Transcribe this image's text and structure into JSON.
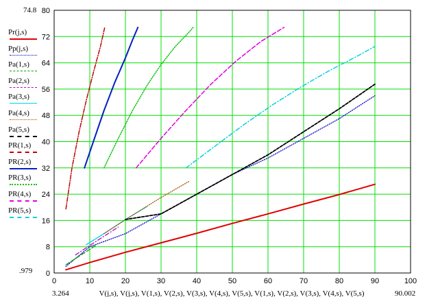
{
  "chart_data": {
    "type": "line",
    "xlim": [
      0,
      100
    ],
    "ylim": [
      0,
      80
    ],
    "x_ticks": [
      "0",
      "10",
      "20",
      "30",
      "40",
      "50",
      "60",
      "70",
      "80",
      "90",
      "100"
    ],
    "y_ticks": [
      "0",
      "8",
      "16",
      "24",
      "32",
      "40",
      "48",
      "56",
      "64",
      "72",
      "80"
    ],
    "corner_labels": {
      "y_max": "74.8",
      "y_min": ".979",
      "x_min": "3.264",
      "x_max": "90.002"
    },
    "xlabel": "V(j,s), V(j,s), V(1,s), V(2,s), V(3,s), V(4,s), V(5,s), V(1,s), V(2,s), V(3,s), V(4,s), V(5,s)",
    "grid": true,
    "legend_position": "left",
    "series": [
      {
        "name": "Pr(j,s)",
        "color": "#e00000",
        "dash": "",
        "width": 2,
        "x": [
          3.3,
          10,
          20,
          30,
          40,
          50,
          60,
          70,
          80,
          90
        ],
        "y": [
          0.98,
          3.2,
          6.3,
          9.2,
          12.1,
          15.1,
          18.0,
          21.0,
          23.9,
          27.0
        ]
      },
      {
        "name": "Pp(j,s)",
        "color": "#0000d0",
        "dash": "1,2",
        "width": 1.3,
        "x": [
          3.3,
          10,
          20,
          30,
          40,
          50,
          60,
          70,
          80,
          90
        ],
        "y": [
          2.0,
          8.0,
          12.0,
          18.0,
          24.0,
          30.0,
          35.0,
          41.0,
          47.0,
          54.0
        ]
      },
      {
        "name": "Pa(1,s)",
        "color": "#00a000",
        "dash": "6,3",
        "width": 1.3,
        "x": [
          3.3,
          6,
          9,
          12
        ],
        "y": [
          2.5,
          4.4,
          6.5,
          8.6
        ]
      },
      {
        "name": "Pa(2,s)",
        "color": "#c000c0",
        "dash": "6,3,1,3",
        "width": 1.3,
        "x": [
          6,
          10,
          14,
          18
        ],
        "y": [
          5.5,
          8.4,
          11.2,
          14.0
        ]
      },
      {
        "name": "Pa(3,s)",
        "color": "#00d0e0",
        "dash": "",
        "width": 1.3,
        "x": [
          9,
          14,
          20,
          26
        ],
        "y": [
          8.6,
          12.0,
          16.3,
          20.2
        ]
      },
      {
        "name": "Pa(4,s)",
        "color": "#a05000",
        "dash": "1,2",
        "width": 1.3,
        "x": [
          14,
          22,
          30,
          38
        ],
        "y": [
          12.0,
          17.6,
          23.0,
          28.0
        ]
      },
      {
        "name": "Pa(5,s)",
        "color": "#000000",
        "dash": "4,2",
        "width": 1.8,
        "x": [
          20,
          30,
          40,
          50,
          60,
          70,
          80,
          90
        ],
        "y": [
          16.3,
          18.0,
          24.0,
          30.0,
          36.0,
          43.0,
          50.0,
          57.5
        ]
      },
      {
        "name": "PR(1,s)",
        "color": "#c00000",
        "dash": "6,2,1,2",
        "width": 1.5,
        "x": [
          3.3,
          5,
          7,
          9,
          11,
          13,
          14.2
        ],
        "y": [
          19.5,
          32.0,
          43.0,
          52.5,
          61.0,
          69.0,
          74.8
        ]
      },
      {
        "name": "PR(2,s)",
        "color": "#0020c0",
        "dash": "",
        "width": 2,
        "x": [
          8.5,
          11,
          14,
          17,
          20,
          22,
          23.5
        ],
        "y": [
          32.0,
          40.0,
          49.5,
          58.0,
          65.5,
          71.0,
          74.8
        ]
      },
      {
        "name": "PR(3,s)",
        "color": "#00c000",
        "dash": "1,2",
        "width": 1.5,
        "x": [
          14,
          18,
          22,
          26,
          30,
          34,
          38,
          39
        ],
        "y": [
          32.0,
          41.0,
          49.5,
          57.0,
          63.5,
          69.0,
          73.5,
          74.8
        ]
      },
      {
        "name": "PR(4,s)",
        "color": "#e000e0",
        "dash": "6,3",
        "width": 1.5,
        "x": [
          23,
          30,
          37,
          44,
          51,
          58,
          64.5
        ],
        "y": [
          32.0,
          41.0,
          49.5,
          57.5,
          64.5,
          70.5,
          74.8
        ]
      },
      {
        "name": "PR(5,s)",
        "color": "#00d0e0",
        "dash": "6,3,1,3",
        "width": 1.5,
        "x": [
          37,
          45,
          53,
          61,
          69,
          77,
          85,
          90
        ],
        "y": [
          32.0,
          38.5,
          45.0,
          51.0,
          56.5,
          61.5,
          66.0,
          69.0
        ]
      }
    ]
  }
}
